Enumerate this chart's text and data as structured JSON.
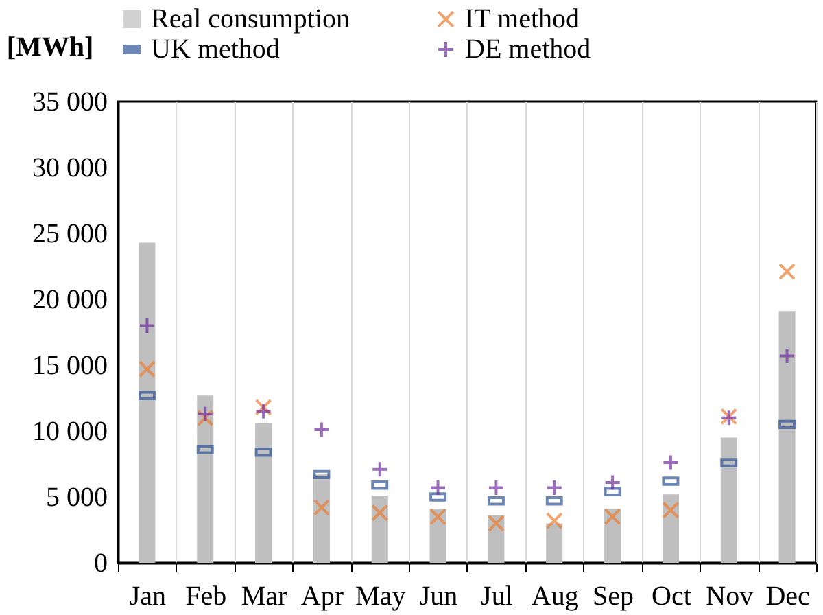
{
  "chart_data": {
    "type": "bar",
    "ylabel": "[MWh]",
    "categories": [
      "Jan",
      "Feb",
      "Mar",
      "Apr",
      "May",
      "Jun",
      "Jul",
      "Aug",
      "Sep",
      "Oct",
      "Nov",
      "Dec"
    ],
    "series": [
      {
        "name": "Real consumption",
        "color": "#bfbfbf",
        "values": [
          24300,
          12700,
          10600,
          6700,
          5100,
          4100,
          3600,
          3000,
          4100,
          5200,
          9500,
          19100
        ]
      },
      {
        "name": "IT method",
        "type": "scatter",
        "marker": "x",
        "color": "#ed7d31",
        "values": [
          14700,
          11000,
          11800,
          4200,
          3800,
          3500,
          3000,
          3200,
          3500,
          4000,
          11100,
          22100
        ]
      },
      {
        "name": "UK method",
        "type": "scatter",
        "marker": "square",
        "color": "#2f5597",
        "values": [
          12700,
          8600,
          8400,
          6700,
          5900,
          5000,
          4700,
          4700,
          5400,
          6200,
          7600,
          10500
        ]
      },
      {
        "name": "DE method",
        "type": "scatter",
        "marker": "cross",
        "color": "#7030a0",
        "values": [
          18000,
          11300,
          11500,
          10100,
          7100,
          5700,
          5700,
          5700,
          6100,
          7600,
          11000,
          15700
        ]
      }
    ],
    "ylim": [
      0,
      35000
    ],
    "yticks": [
      0,
      {
        "value": 5000,
        "label": "5 000"
      },
      {
        "value": 10000,
        "label": "10 000"
      },
      {
        "value": 15000,
        "label": "15 000"
      },
      {
        "value": 20000,
        "label": "20 000"
      },
      {
        "value": 25000,
        "label": "25 000"
      },
      {
        "value": 30000,
        "label": "30 000"
      },
      {
        "value": 35000,
        "label": "35 000"
      }
    ],
    "grid": "x",
    "legend": "top"
  }
}
